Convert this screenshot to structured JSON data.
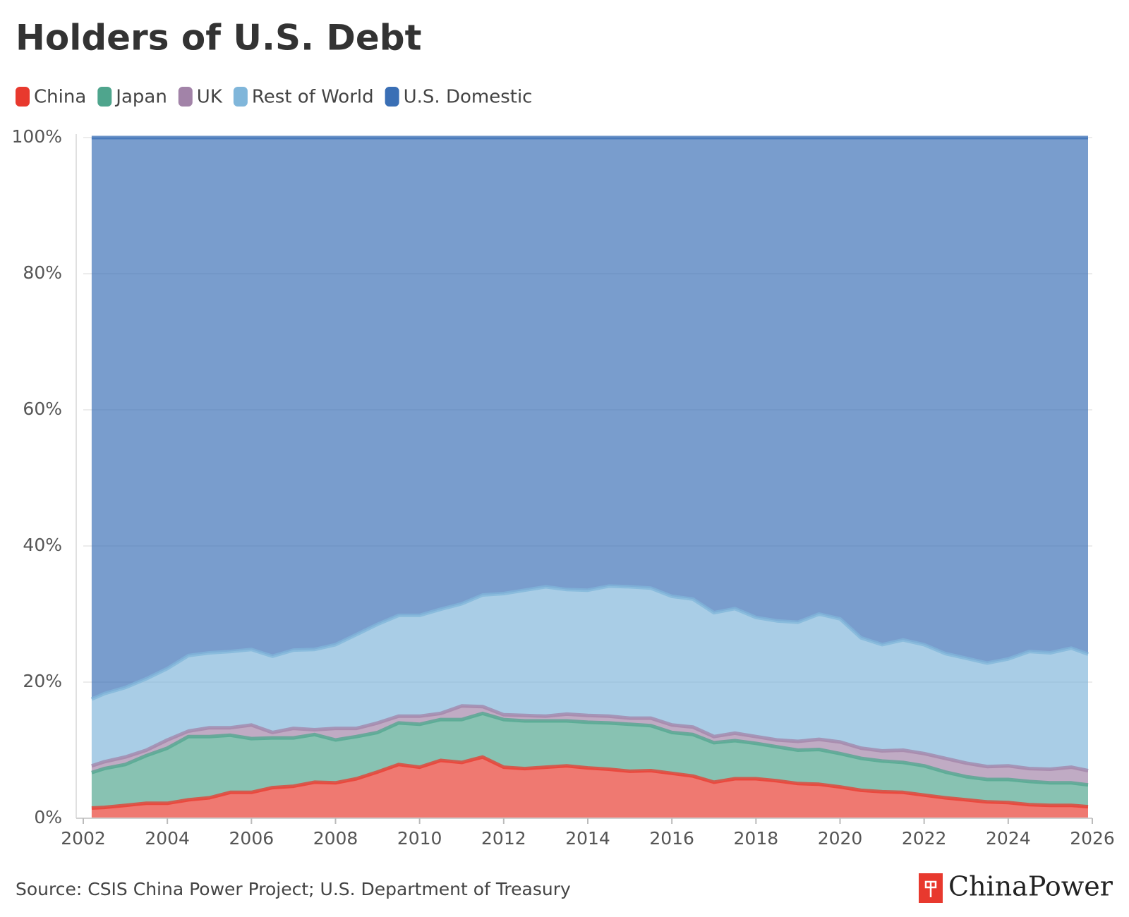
{
  "chart_data": {
    "type": "stacked_area",
    "title": "Holders of U.S. Debt",
    "source": "Source: CSIS China Power Project; U.S. Department of Treasury",
    "logo": "ChinaPower",
    "x": [
      2002.2,
      2002.5,
      2003.0,
      2003.5,
      2004.0,
      2004.5,
      2005.0,
      2005.5,
      2006.0,
      2006.5,
      2007.0,
      2007.5,
      2008.0,
      2008.5,
      2009.0,
      2009.5,
      2010.0,
      2010.5,
      2011.0,
      2011.5,
      2012.0,
      2012.5,
      2013.0,
      2013.5,
      2014.0,
      2014.5,
      2015.0,
      2015.5,
      2016.0,
      2016.5,
      2017.0,
      2017.5,
      2018.0,
      2018.5,
      2019.0,
      2019.5,
      2020.0,
      2020.5,
      2021.0,
      2021.5,
      2022.0,
      2022.5,
      2023.0,
      2023.5,
      2024.0,
      2024.5,
      2025.0,
      2025.5,
      2025.9
    ],
    "series": [
      {
        "name": "China",
        "color": "#e8392e",
        "values": [
          1.5,
          1.6,
          1.9,
          2.2,
          2.2,
          2.7,
          3.0,
          3.8,
          3.8,
          4.5,
          4.7,
          5.3,
          5.2,
          5.8,
          6.8,
          7.9,
          7.5,
          8.5,
          8.2,
          9.0,
          7.5,
          7.3,
          7.5,
          7.7,
          7.4,
          7.2,
          6.9,
          7.0,
          6.6,
          6.2,
          5.3,
          5.8,
          5.8,
          5.5,
          5.1,
          5.0,
          4.6,
          4.1,
          3.9,
          3.8,
          3.4,
          3.0,
          2.7,
          2.4,
          2.3,
          2.0,
          1.9,
          1.9,
          1.7
        ]
      },
      {
        "name": "Japan",
        "color": "#4fa58d",
        "values": [
          5.2,
          5.7,
          6.0,
          7.0,
          8.1,
          9.3,
          9.0,
          8.4,
          7.9,
          7.3,
          7.1,
          7.0,
          6.3,
          6.2,
          5.8,
          6.1,
          6.3,
          6.0,
          6.3,
          6.4,
          7.0,
          7.0,
          6.8,
          6.6,
          6.7,
          6.8,
          6.9,
          6.6,
          6.0,
          6.1,
          5.8,
          5.6,
          5.2,
          5.0,
          4.9,
          5.1,
          4.9,
          4.7,
          4.5,
          4.4,
          4.3,
          3.8,
          3.4,
          3.3,
          3.4,
          3.4,
          3.3,
          3.3,
          3.2
        ]
      },
      {
        "name": "UK",
        "color": "#a283a8",
        "values": [
          1.0,
          1.0,
          1.1,
          0.8,
          1.2,
          0.8,
          1.3,
          1.1,
          2.0,
          0.8,
          1.4,
          0.7,
          1.7,
          1.2,
          1.4,
          1.0,
          1.2,
          0.9,
          2.0,
          1.0,
          0.7,
          0.8,
          0.7,
          1.0,
          1.0,
          1.0,
          0.9,
          1.1,
          1.1,
          1.1,
          0.9,
          1.1,
          1.0,
          1.0,
          1.3,
          1.5,
          1.7,
          1.5,
          1.5,
          1.8,
          1.8,
          2.0,
          2.0,
          1.9,
          2.0,
          1.9,
          2.0,
          2.3,
          2.1
        ]
      },
      {
        "name": "Rest of World",
        "color": "#80b6da",
        "values": [
          9.8,
          10.0,
          10.2,
          10.5,
          10.5,
          11.1,
          11.0,
          11.2,
          11.1,
          11.2,
          11.5,
          11.8,
          12.3,
          13.8,
          14.5,
          14.8,
          14.8,
          15.3,
          15.0,
          16.4,
          17.8,
          18.4,
          19.0,
          18.3,
          18.4,
          19.1,
          19.3,
          19.1,
          18.9,
          18.8,
          18.2,
          18.3,
          17.5,
          17.5,
          17.5,
          18.4,
          18.1,
          16.2,
          15.6,
          16.2,
          16.0,
          15.4,
          15.4,
          15.2,
          15.7,
          17.2,
          17.1,
          17.5,
          17.1
        ]
      },
      {
        "name": "U.S. Domestic",
        "color": "#3a6fb5",
        "values": [
          82.5,
          81.7,
          80.8,
          79.5,
          78.0,
          76.1,
          75.7,
          75.5,
          75.2,
          76.2,
          75.3,
          75.2,
          74.5,
          73.0,
          71.5,
          70.2,
          70.2,
          69.3,
          68.5,
          67.2,
          67.0,
          66.5,
          66.0,
          66.4,
          66.5,
          65.9,
          66.0,
          66.2,
          67.4,
          67.8,
          69.8,
          69.2,
          70.5,
          71.0,
          71.2,
          70.0,
          70.7,
          73.5,
          74.5,
          73.8,
          74.5,
          75.8,
          76.5,
          77.2,
          76.6,
          75.5,
          75.7,
          75.0,
          75.9
        ]
      }
    ],
    "xlim": [
      2002,
      2026
    ],
    "xticks": [
      2002,
      2004,
      2006,
      2008,
      2010,
      2012,
      2014,
      2016,
      2018,
      2020,
      2022,
      2024,
      2026
    ],
    "ylim": [
      0,
      100
    ],
    "yticks": [
      {
        "value": 0,
        "label": "0%"
      },
      {
        "value": 20,
        "label": "20%"
      },
      {
        "value": 40,
        "label": "40%"
      },
      {
        "value": 60,
        "label": "60%"
      },
      {
        "value": 80,
        "label": "80%"
      },
      {
        "value": 100,
        "label": "100%"
      }
    ],
    "grid": true
  }
}
